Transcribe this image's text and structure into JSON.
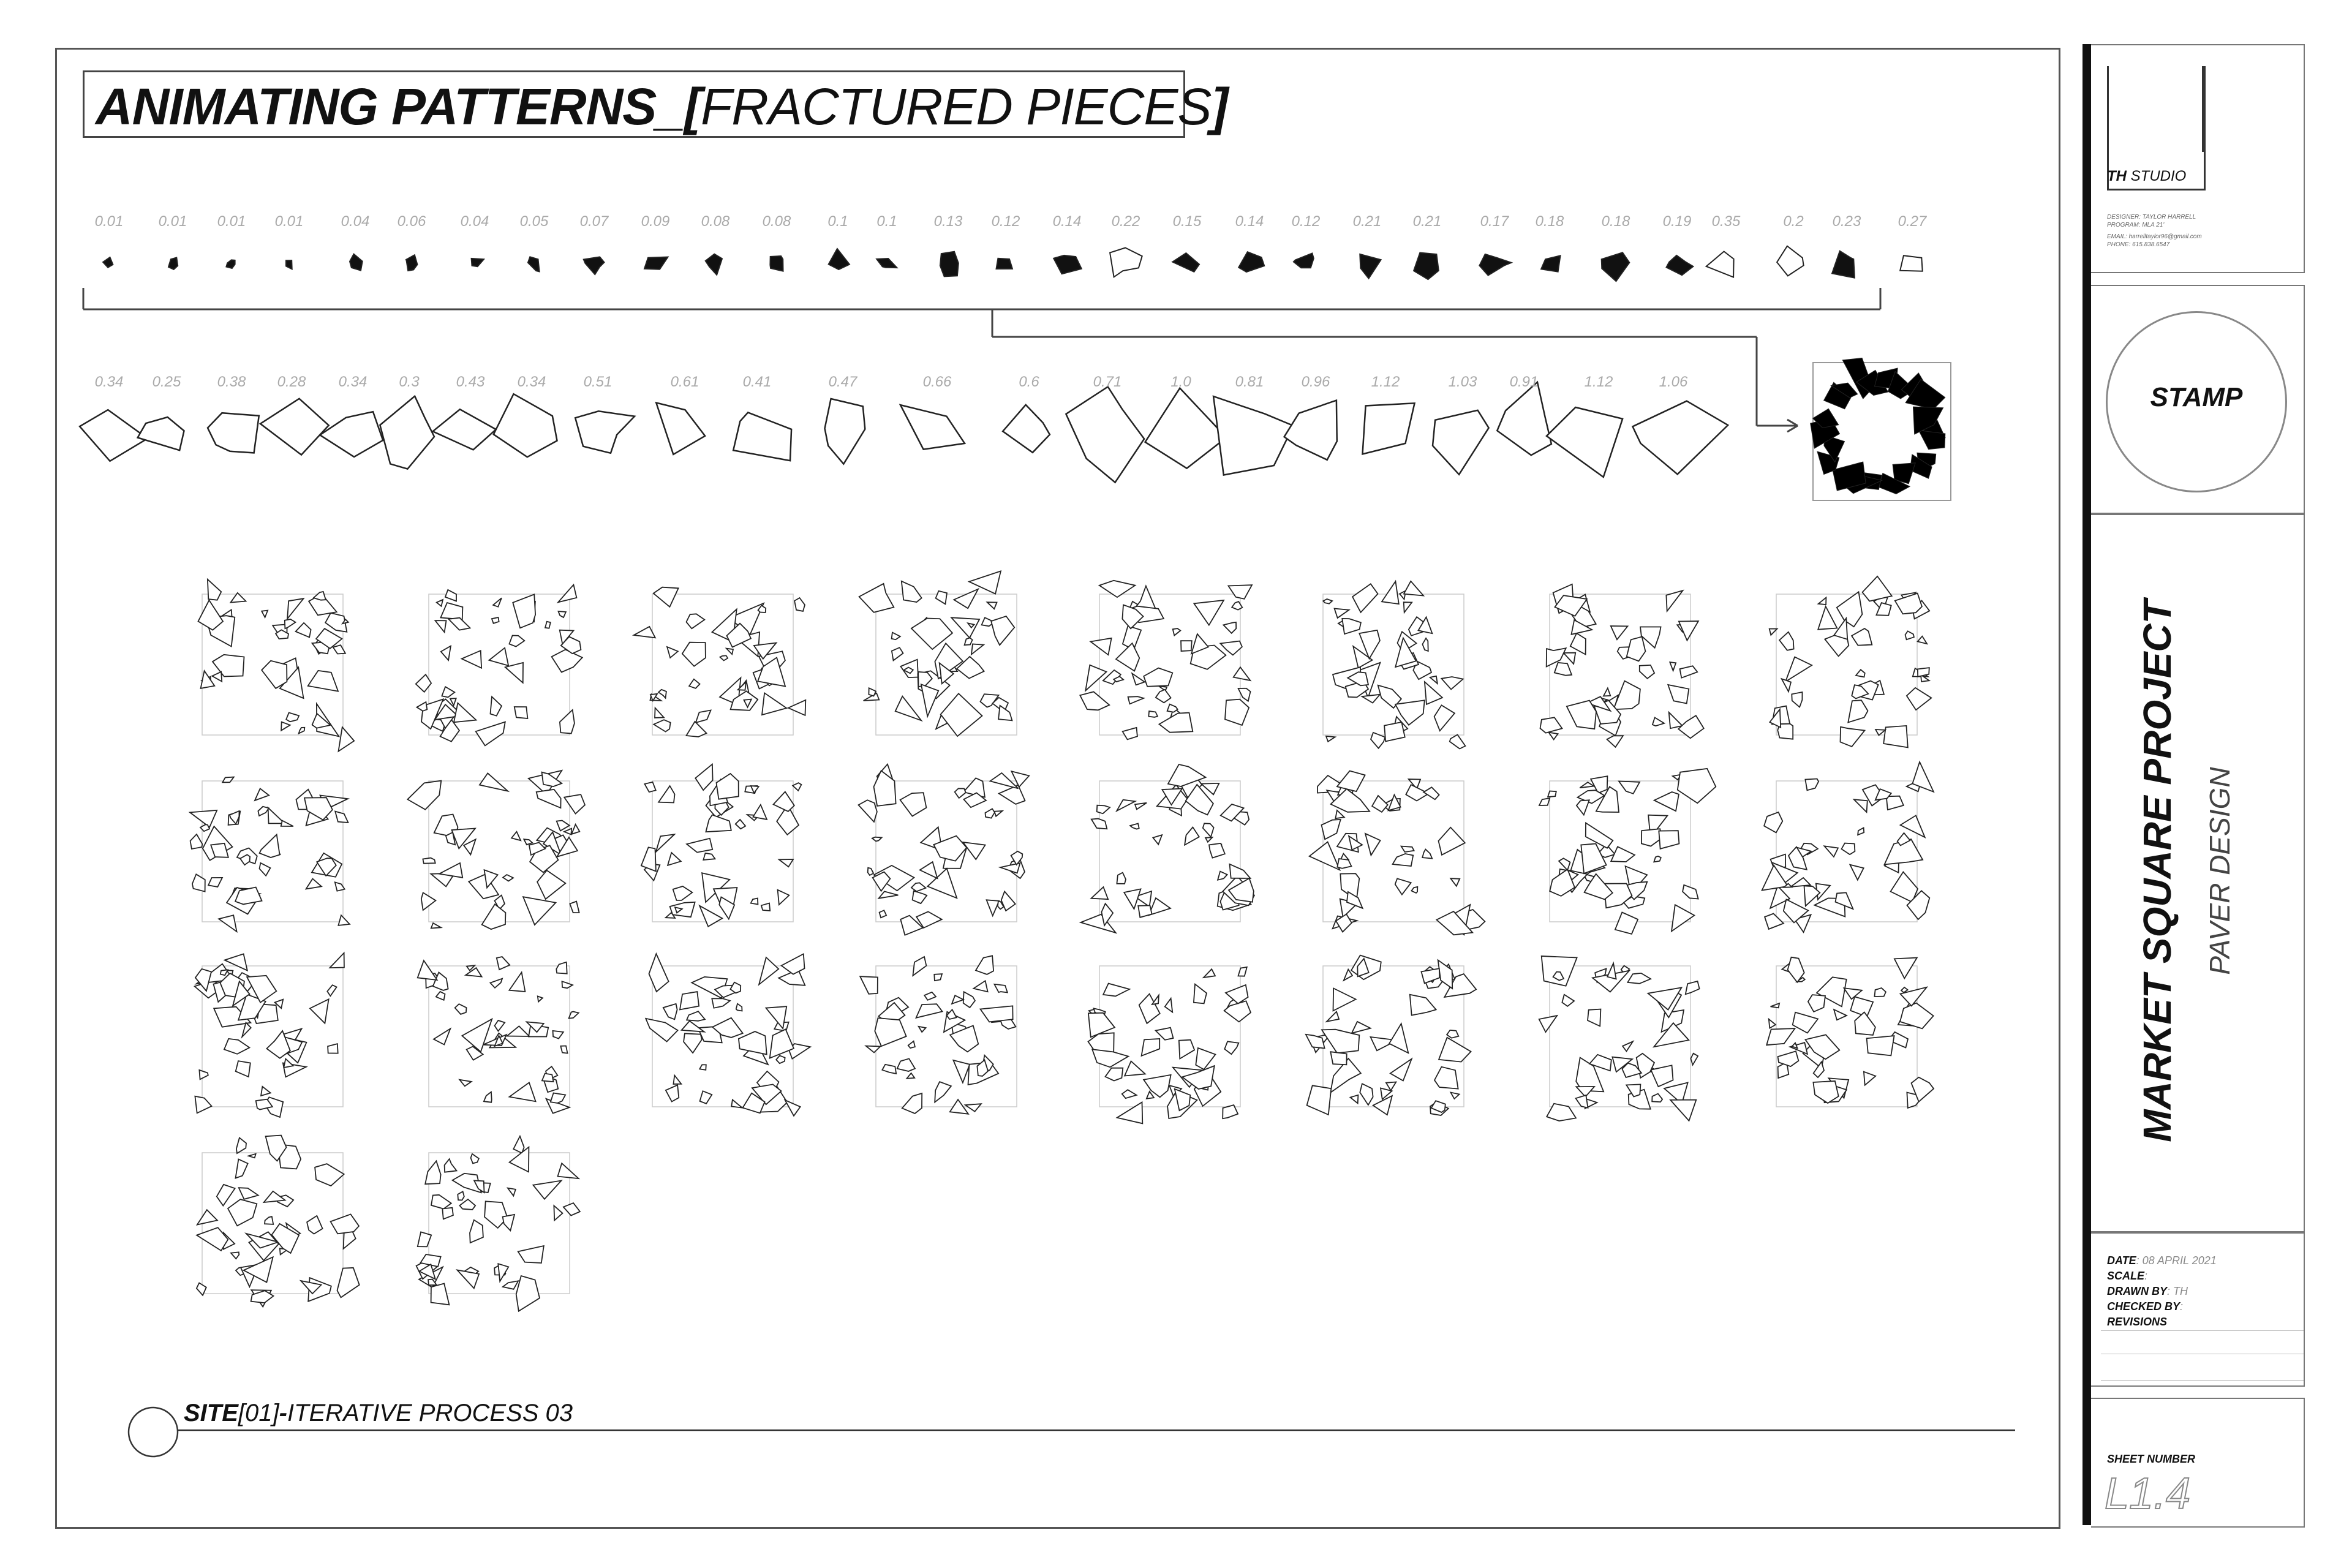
{
  "sheet": {
    "title_bold": "ANIMATING PATTERNS_[",
    "title_thin": "FRACTURED PIECES",
    "title_end": "]"
  },
  "row1_labels": [
    "0.01",
    "0.01",
    "0.01",
    "0.01",
    "0.04",
    "0.06",
    "0.04",
    "0.05",
    "0.07",
    "0.09",
    "0.08",
    "0.08",
    "0.1",
    "0.1",
    "0.13",
    "0.12",
    "0.14",
    "0.22",
    "0.15",
    "0.14",
    "0.12",
    "0.21",
    "0.21",
    "0.17",
    "0.18",
    "0.18",
    "0.19",
    "0.35",
    "0.2",
    "0.23",
    "0.27"
  ],
  "row2_labels": [
    "0.34",
    "0.25",
    "0.38",
    "0.28",
    "0.34",
    "0.3",
    "0.43",
    "0.34",
    "0.51",
    "0.61",
    "0.41",
    "0.47",
    "0.66",
    "0.6",
    "0.71",
    "1.0",
    "0.81",
    "0.96",
    "1.12",
    "1.03",
    "0.91",
    "1.12",
    "1.06"
  ],
  "caption": {
    "bold_a": "SITE",
    "thin_a": "[01]",
    "bold_b": "-",
    "thin_b": "ITERATIVE PROCESS 03"
  },
  "title_block": {
    "studio_bold": "TH",
    "studio_thin": " STUDIO",
    "designer_line": "DESIGNER: TAYLOR HARRELL",
    "program_line": "PROGRAM: MLA 21'",
    "email_line": "EMAIL: harrelltaylor96@gmail.com",
    "phone_line": "PHONE: 615.838.6547",
    "stamp": "STAMP",
    "project": "MARKET SQUARE PROJECT",
    "subtitle": "PAVER DESIGN",
    "date_label": "DATE",
    "date_value": ": 08 APRIL 2021",
    "scale_label": "SCALE",
    "scale_value": ":",
    "drawn_label": "DRAWN BY",
    "drawn_value": ": TH",
    "checked_label": "CHECKED BY",
    "checked_value": ":",
    "revisions_label": "REVISIONS",
    "sheet_number_label": "SHEET NUMBER",
    "sheet_number": "L1.4"
  }
}
